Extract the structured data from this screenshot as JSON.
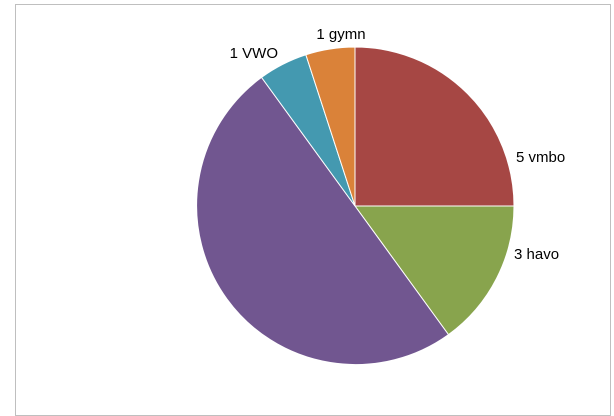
{
  "chart_data": {
    "type": "pie",
    "title": "",
    "slices": [
      {
        "label": "5 vmbo",
        "value": 5,
        "color": "#A64744"
      },
      {
        "label": "3 havo",
        "value": 3,
        "color": "#88A44D"
      },
      {
        "label": "",
        "value": 10,
        "color": "#715690"
      },
      {
        "label": "1 VWO",
        "value": 1,
        "color": "#4499B0"
      },
      {
        "label": "1 gymn",
        "value": 1,
        "color": "#DA8239"
      }
    ],
    "start_angle_deg": 0,
    "direction": "clockwise",
    "legend": "none"
  }
}
